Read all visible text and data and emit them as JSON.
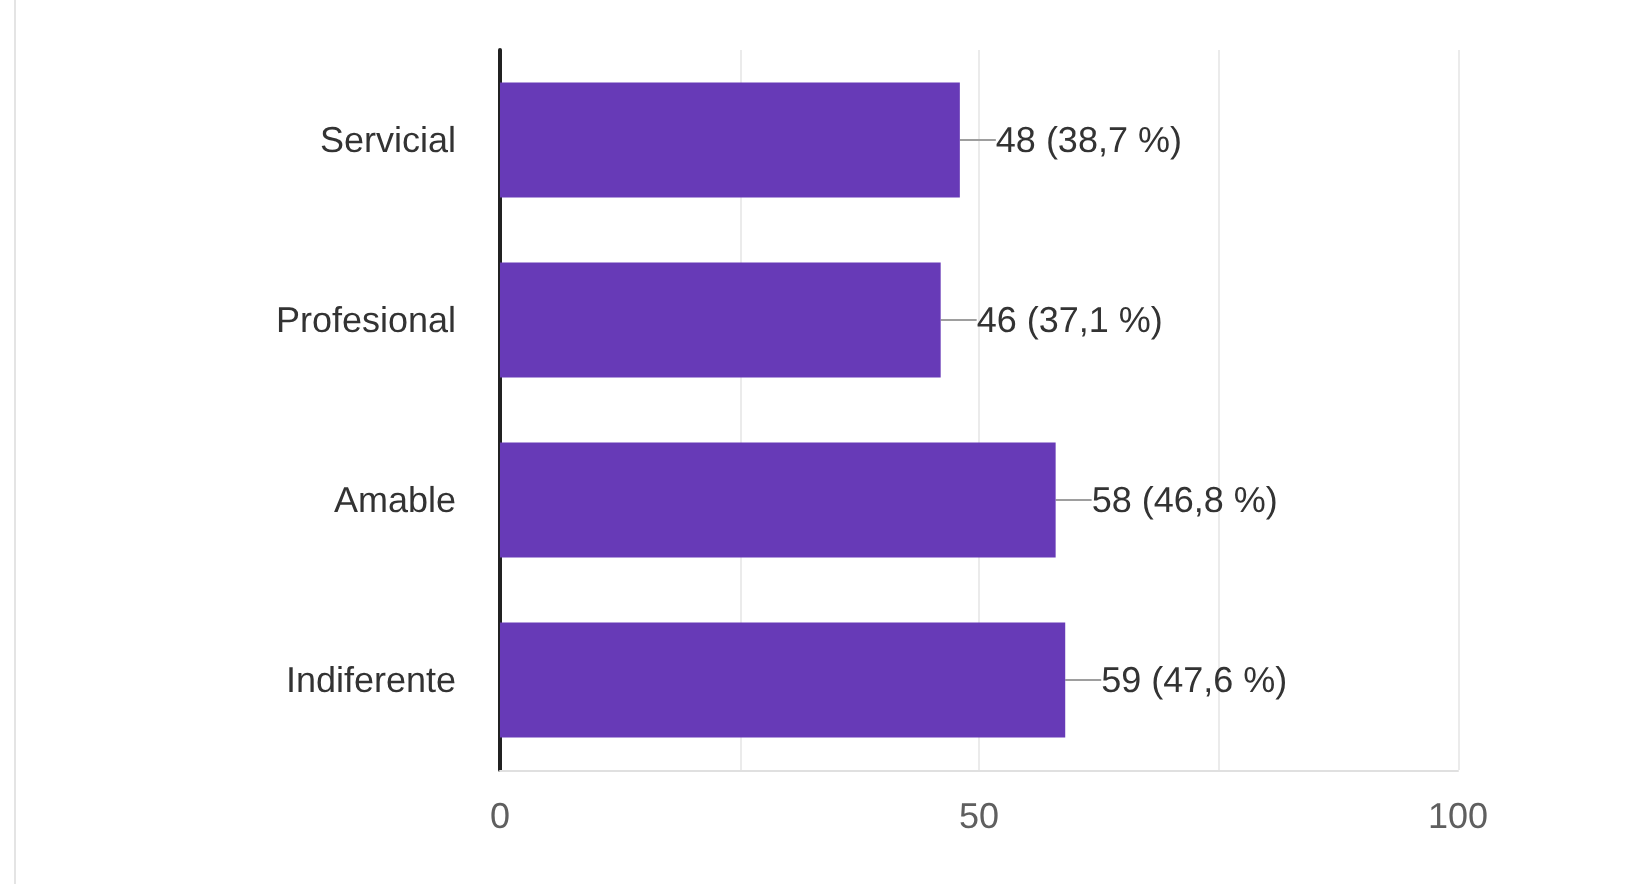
{
  "chart_data": {
    "type": "bar",
    "orientation": "horizontal",
    "categories": [
      "Servicial",
      "Profesional",
      "Amable",
      "Indiferente"
    ],
    "values": [
      48,
      46,
      58,
      59
    ],
    "value_labels": [
      "48 (38,7 %)",
      "46 (37,1 %)",
      "58 (46,8 %)",
      "59 (47,6 %)"
    ],
    "color": "#673ab7",
    "xlim": [
      0,
      100
    ],
    "xticks": [
      0,
      {
        "value": 25,
        "label": null
      },
      50,
      {
        "value": 75,
        "label": null
      },
      100
    ],
    "grid": "x"
  }
}
